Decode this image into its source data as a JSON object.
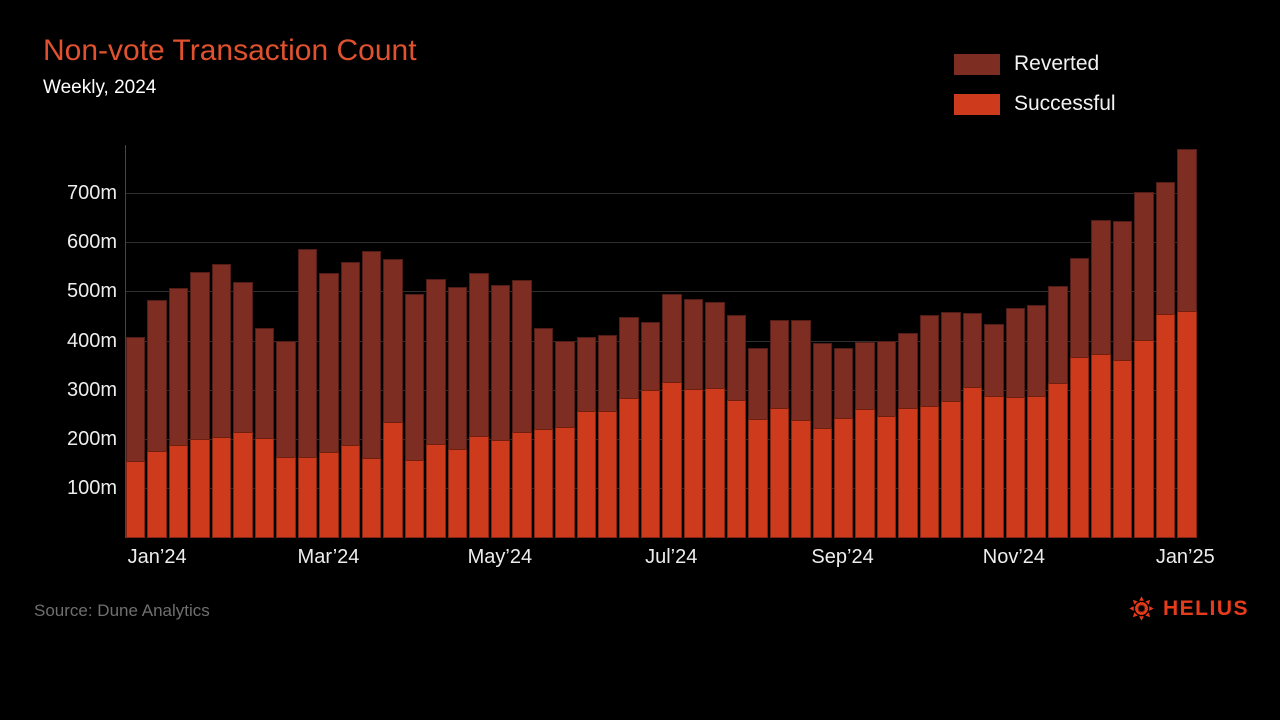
{
  "header": {
    "title": "Non-vote Transaction Count",
    "subtitle": "Weekly, 2024"
  },
  "legend": {
    "items": [
      {
        "label": "Reverted",
        "color": "#7e2d23"
      },
      {
        "label": "Successful",
        "color": "#ce3a1c"
      }
    ]
  },
  "footer": {
    "source": "Source: Dune Analytics",
    "brand": "HELIUS"
  },
  "colors": {
    "background": "#000000",
    "title": "#e0522f",
    "grid": "#2f2f2f",
    "axis": "#454545",
    "text": "#ededed",
    "muted": "#6f6f6f",
    "brand": "#e73c1b",
    "successful": "#ce3a1c",
    "reverted": "#7e2d23"
  },
  "chart_data": {
    "type": "bar",
    "stacked": true,
    "title": "Non-vote Transaction Count",
    "subtitle": "Weekly, 2024",
    "unit": "millions of transactions per week",
    "ylim": [
      0,
      800
    ],
    "grid": "horizontal",
    "legend_position": "top-right",
    "y_ticks": [
      {
        "value": 100,
        "label": "100m"
      },
      {
        "value": 200,
        "label": "200m"
      },
      {
        "value": 300,
        "label": "300m"
      },
      {
        "value": 400,
        "label": "400m"
      },
      {
        "value": 500,
        "label": "500m"
      },
      {
        "value": 600,
        "label": "600m"
      },
      {
        "value": 700,
        "label": "700m"
      }
    ],
    "x_ticks": [
      {
        "label": "Jan’24",
        "bar_index": 1
      },
      {
        "label": "Mar’24",
        "bar_index": 9
      },
      {
        "label": "May’24",
        "bar_index": 17
      },
      {
        "label": "Jul’24",
        "bar_index": 25
      },
      {
        "label": "Sep’24",
        "bar_index": 33
      },
      {
        "label": "Nov’24",
        "bar_index": 41
      },
      {
        "label": "Jan’25",
        "bar_index": 49
      }
    ],
    "series": [
      {
        "name": "Successful",
        "color": "#ce3a1c",
        "values": [
          157,
          178,
          189,
          201,
          206,
          216,
          203,
          164,
          164,
          176,
          190,
          163,
          237,
          158,
          191,
          182,
          208,
          200,
          215,
          222,
          225,
          258,
          258,
          286,
          302,
          317,
          303,
          305,
          280,
          243,
          264,
          241,
          224,
          245,
          263,
          248,
          265,
          268,
          279,
          307,
          290,
          288,
          290,
          315,
          369,
          375,
          362,
          403,
          455,
          462
        ]
      },
      {
        "name": "Reverted",
        "color": "#7e2d23",
        "values": [
          253,
          307,
          319,
          341,
          351,
          305,
          225,
          237,
          424,
          364,
          372,
          421,
          331,
          338,
          337,
          329,
          332,
          316,
          310,
          205,
          176,
          152,
          156,
          164,
          138,
          179,
          183,
          176,
          174,
          143,
          180,
          203,
          172,
          141,
          137,
          153,
          153,
          187,
          181,
          151,
          145,
          181,
          185,
          198,
          201,
          273,
          283,
          301,
          270,
          330
        ]
      }
    ],
    "totals": [
      410,
      485,
      508,
      542,
      557,
      521,
      428,
      401,
      588,
      540,
      562,
      584,
      568,
      496,
      528,
      511,
      540,
      516,
      525,
      427,
      401,
      410,
      414,
      450,
      440,
      496,
      486,
      481,
      454,
      386,
      444,
      444,
      396,
      386,
      400,
      401,
      418,
      455,
      460,
      458,
      435,
      469,
      475,
      513,
      570,
      648,
      645,
      704,
      725,
      792
    ]
  }
}
